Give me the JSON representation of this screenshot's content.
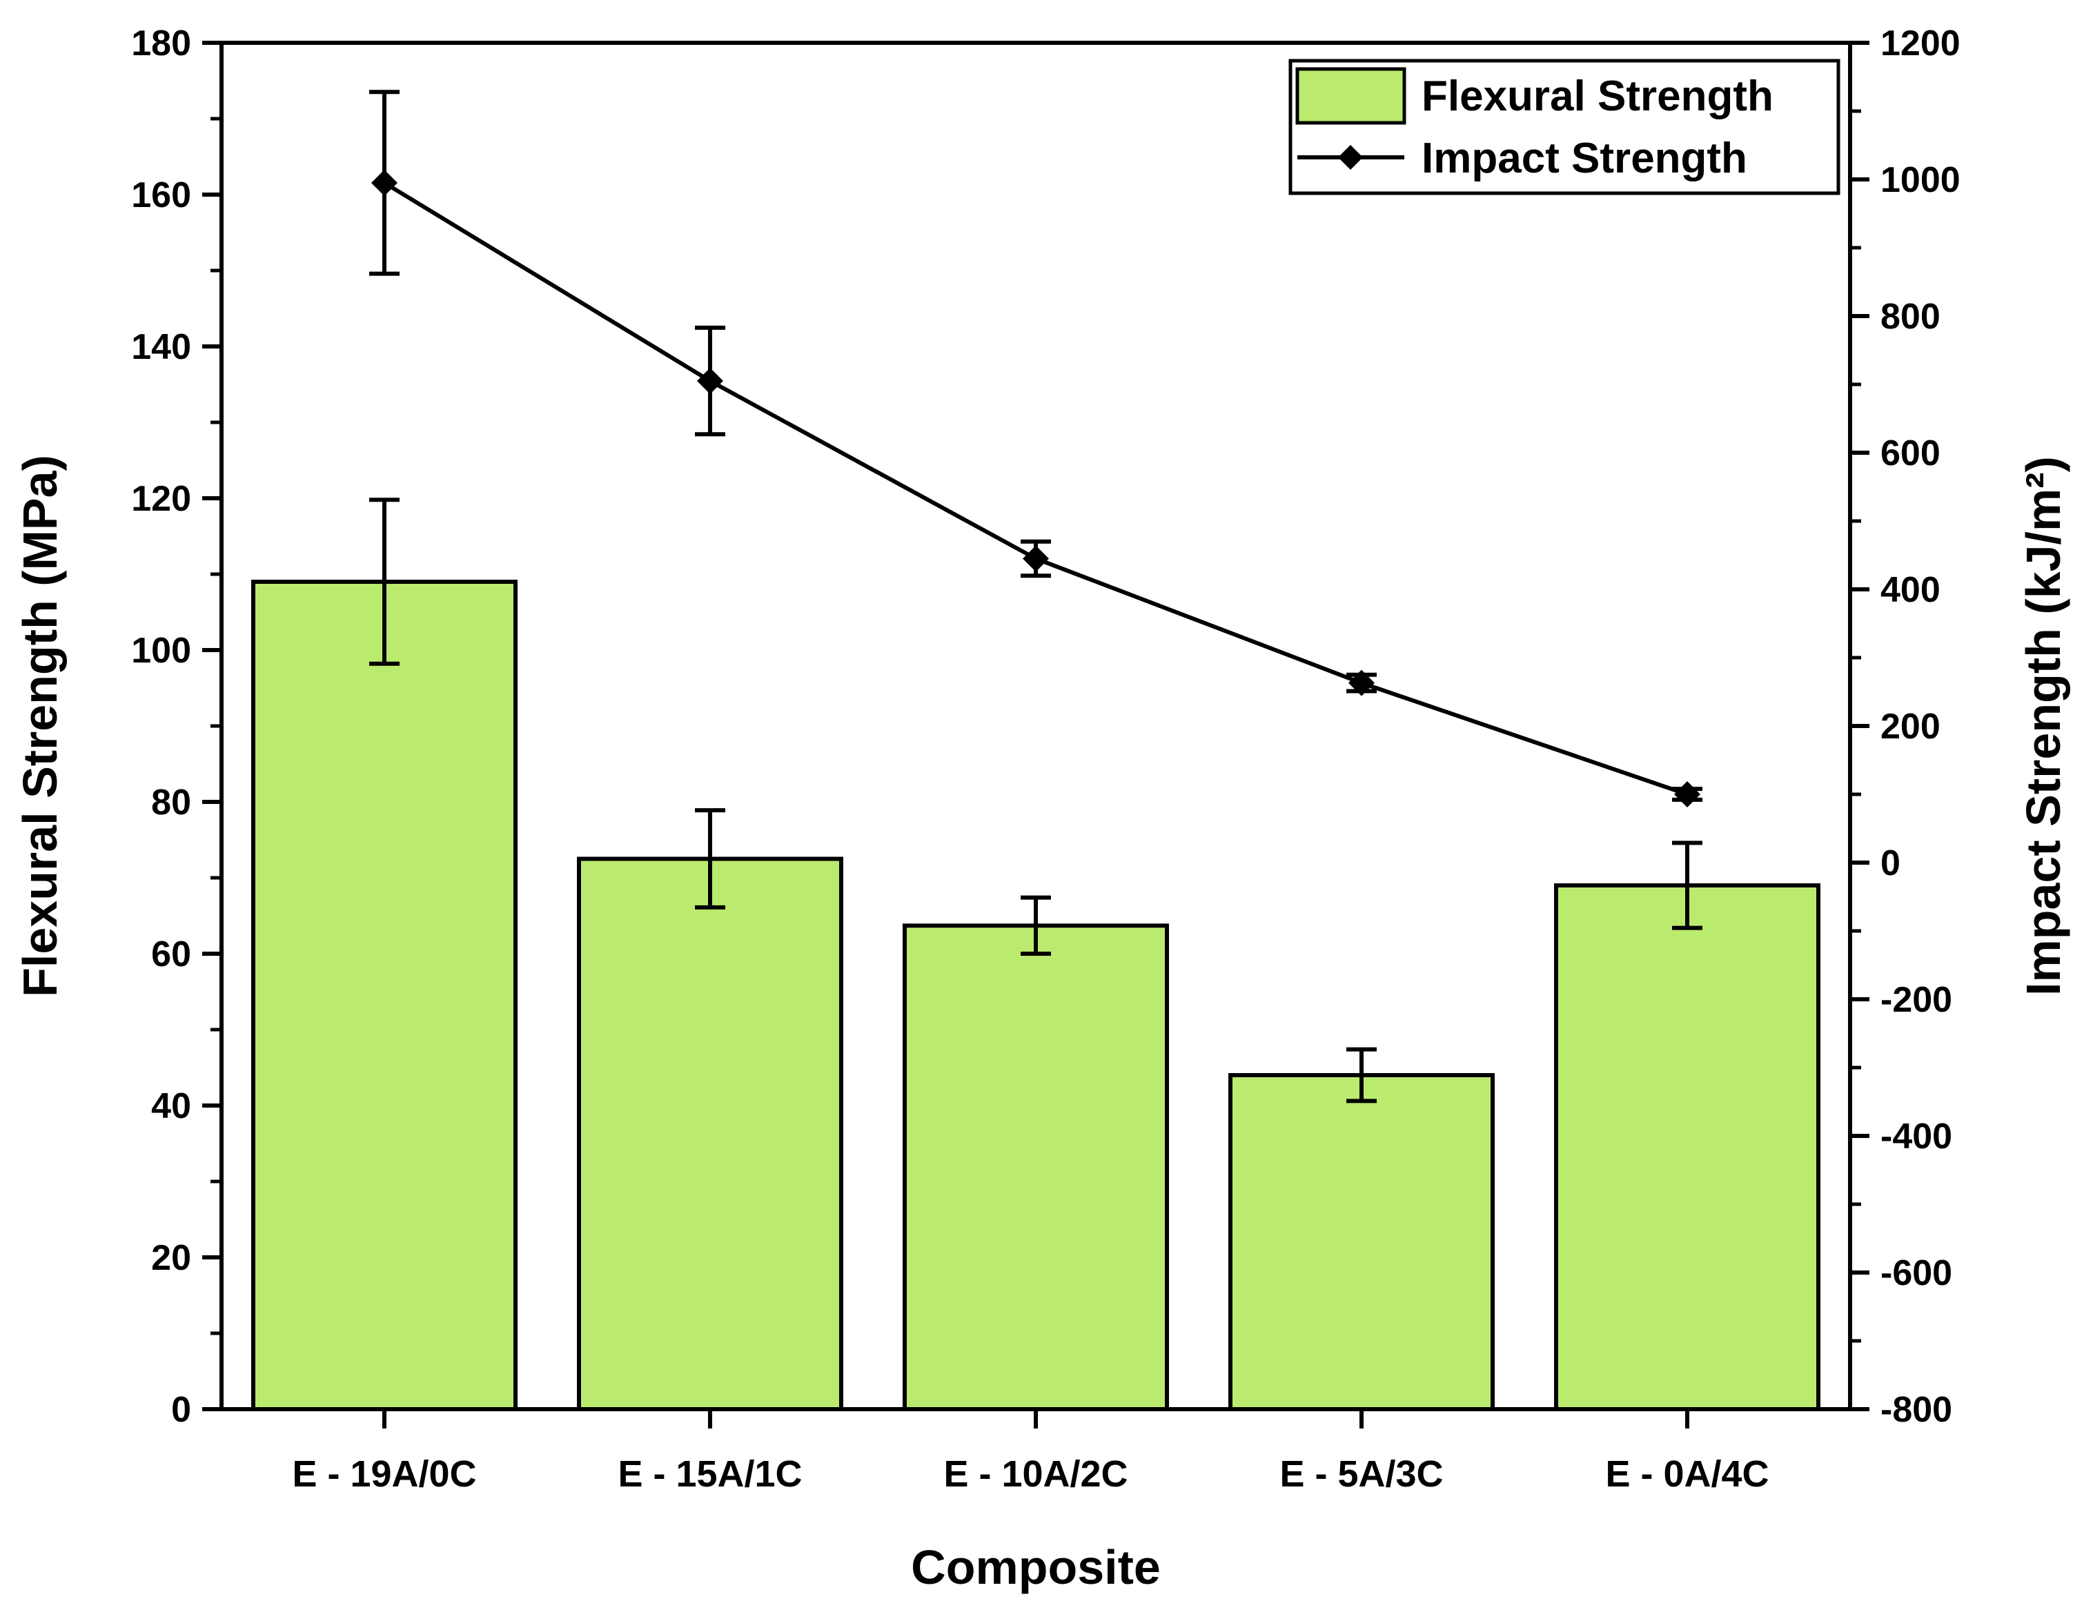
{
  "chart_data": {
    "type": "bar+line",
    "title": "",
    "xlabel": "Composite",
    "ylabel_left": "Flexural Strength (MPa)",
    "ylabel_right": "Impact Strength (kJ/m²)",
    "categories": [
      "E - 19A/0C",
      "E - 15A/1C",
      "E - 10A/2C",
      "E - 5A/3C",
      "E - 0A/4C"
    ],
    "left_axis": {
      "ylim": [
        0,
        180
      ],
      "ticks": [
        0,
        20,
        40,
        60,
        80,
        100,
        120,
        140,
        160,
        180
      ],
      "tick_labels": [
        "0",
        "20",
        "40",
        "60",
        "80",
        "100",
        "120",
        "140",
        "160",
        "180"
      ]
    },
    "right_axis": {
      "ylim": [
        -800,
        1200
      ],
      "ticks": [
        -800,
        -600,
        -400,
        -200,
        0,
        200,
        400,
        600,
        800,
        1000,
        1200
      ],
      "tick_labels": [
        "-800",
        "-600",
        "-400",
        "-200",
        "0",
        "200",
        "400",
        "600",
        "800",
        "1000",
        "1200"
      ]
    },
    "series": [
      {
        "name": "Flexural Strength",
        "kind": "bar",
        "axis": "left",
        "color": "#bbeb6e",
        "values": [
          109,
          72.5,
          63.7,
          44,
          69
        ],
        "errors": [
          10.8,
          6.4,
          3.7,
          3.4,
          5.6
        ]
      },
      {
        "name": "Impact Strength",
        "kind": "line",
        "axis": "right",
        "color": "#000000",
        "marker": "diamond",
        "values": [
          995,
          705,
          445,
          263,
          100
        ],
        "errors": [
          133,
          78,
          25,
          12,
          8
        ]
      }
    ],
    "legend": {
      "position": "top-right",
      "entries": [
        "Flexural Strength",
        "Impact Strength"
      ]
    }
  }
}
